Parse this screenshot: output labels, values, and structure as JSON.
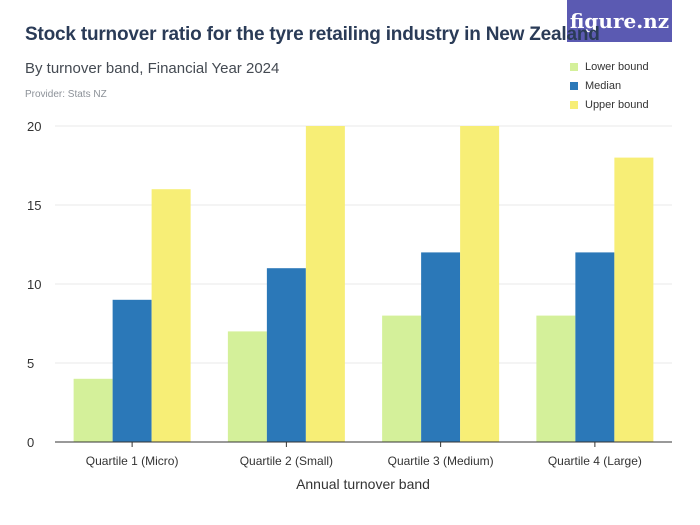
{
  "header": {
    "title": "Stock turnover ratio for the tyre retailing industry in New Zealand",
    "subtitle": "By turnover band, Financial Year 2024",
    "provider": "Provider: Stats NZ",
    "logo": "figure.nz"
  },
  "colors": {
    "lower": "#d4f09a",
    "median": "#2b78b8",
    "upper": "#f7ee76",
    "grid": "#e8e8e8",
    "axis": "#333333",
    "title": "#2a3b57"
  },
  "chart_data": {
    "type": "bar",
    "xlabel": "Annual turnover band",
    "ylabel": "",
    "ylim": [
      0,
      20
    ],
    "yticks": [
      0,
      5,
      10,
      15,
      20
    ],
    "grid": true,
    "legend_position": "top-right",
    "categories": [
      "Quartile 1 (Micro)",
      "Quartile 2 (Small)",
      "Quartile 3 (Medium)",
      "Quartile 4 (Large)"
    ],
    "series": [
      {
        "name": "Lower bound",
        "values": [
          4,
          7,
          8,
          8
        ]
      },
      {
        "name": "Median",
        "values": [
          9,
          11,
          12,
          12
        ]
      },
      {
        "name": "Upper bound",
        "values": [
          16,
          20,
          20,
          18
        ]
      }
    ]
  }
}
